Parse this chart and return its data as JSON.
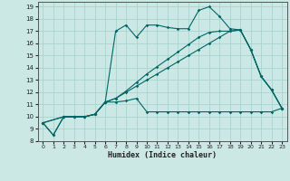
{
  "xlabel": "Humidex (Indice chaleur)",
  "bg_color": "#cce8e4",
  "grid_color": "#a8d4d0",
  "line_color": "#006666",
  "xlim": [
    -0.5,
    23.5
  ],
  "ylim": [
    8,
    19.4
  ],
  "xticks": [
    0,
    1,
    2,
    3,
    4,
    5,
    6,
    7,
    8,
    9,
    10,
    11,
    12,
    13,
    14,
    15,
    16,
    17,
    18,
    19,
    20,
    21,
    22,
    23
  ],
  "yticks": [
    8,
    9,
    10,
    11,
    12,
    13,
    14,
    15,
    16,
    17,
    18,
    19
  ],
  "s1_x": [
    0,
    1,
    2,
    3,
    4,
    5,
    6,
    7,
    8,
    9,
    10,
    11,
    12,
    13,
    14,
    15,
    16,
    17,
    18,
    19,
    20,
    21,
    22,
    23
  ],
  "s1_y": [
    9.5,
    8.5,
    10.0,
    10.0,
    10.0,
    10.2,
    11.2,
    17.0,
    17.5,
    16.5,
    17.5,
    17.5,
    17.3,
    17.2,
    17.2,
    18.7,
    19.0,
    18.2,
    17.2,
    17.1,
    15.5,
    13.3,
    12.2,
    10.7
  ],
  "s2_x": [
    0,
    1,
    2,
    3,
    4,
    5,
    6,
    7,
    8,
    9,
    10,
    11,
    12,
    13,
    14,
    15,
    16,
    17,
    18,
    19,
    20,
    21,
    22,
    23
  ],
  "s2_y": [
    9.5,
    8.5,
    10.0,
    10.0,
    10.0,
    10.2,
    11.2,
    11.2,
    11.3,
    11.5,
    10.4,
    10.4,
    10.4,
    10.4,
    10.4,
    10.4,
    10.4,
    10.4,
    10.4,
    10.4,
    10.4,
    10.4,
    10.4,
    10.7
  ],
  "s3_x": [
    0,
    2,
    3,
    4,
    5,
    6,
    7,
    8,
    9,
    10,
    11,
    12,
    13,
    14,
    15,
    16,
    17,
    18,
    19,
    20,
    21,
    22,
    23
  ],
  "s3_y": [
    9.5,
    10.0,
    10.0,
    10.0,
    10.2,
    11.2,
    11.5,
    12.0,
    12.5,
    13.0,
    13.5,
    14.0,
    14.5,
    15.0,
    15.5,
    16.0,
    16.5,
    17.0,
    17.1,
    15.5,
    13.3,
    12.2,
    10.7
  ],
  "s4_x": [
    0,
    2,
    3,
    4,
    5,
    6,
    7,
    8,
    9,
    10,
    11,
    12,
    13,
    14,
    15,
    16,
    17,
    18,
    19,
    20,
    21,
    22,
    23
  ],
  "s4_y": [
    9.5,
    10.0,
    10.0,
    10.0,
    10.2,
    11.2,
    11.5,
    12.1,
    12.8,
    13.5,
    14.1,
    14.7,
    15.3,
    15.9,
    16.5,
    16.9,
    17.0,
    17.0,
    17.1,
    15.5,
    13.3,
    12.2,
    10.7
  ]
}
